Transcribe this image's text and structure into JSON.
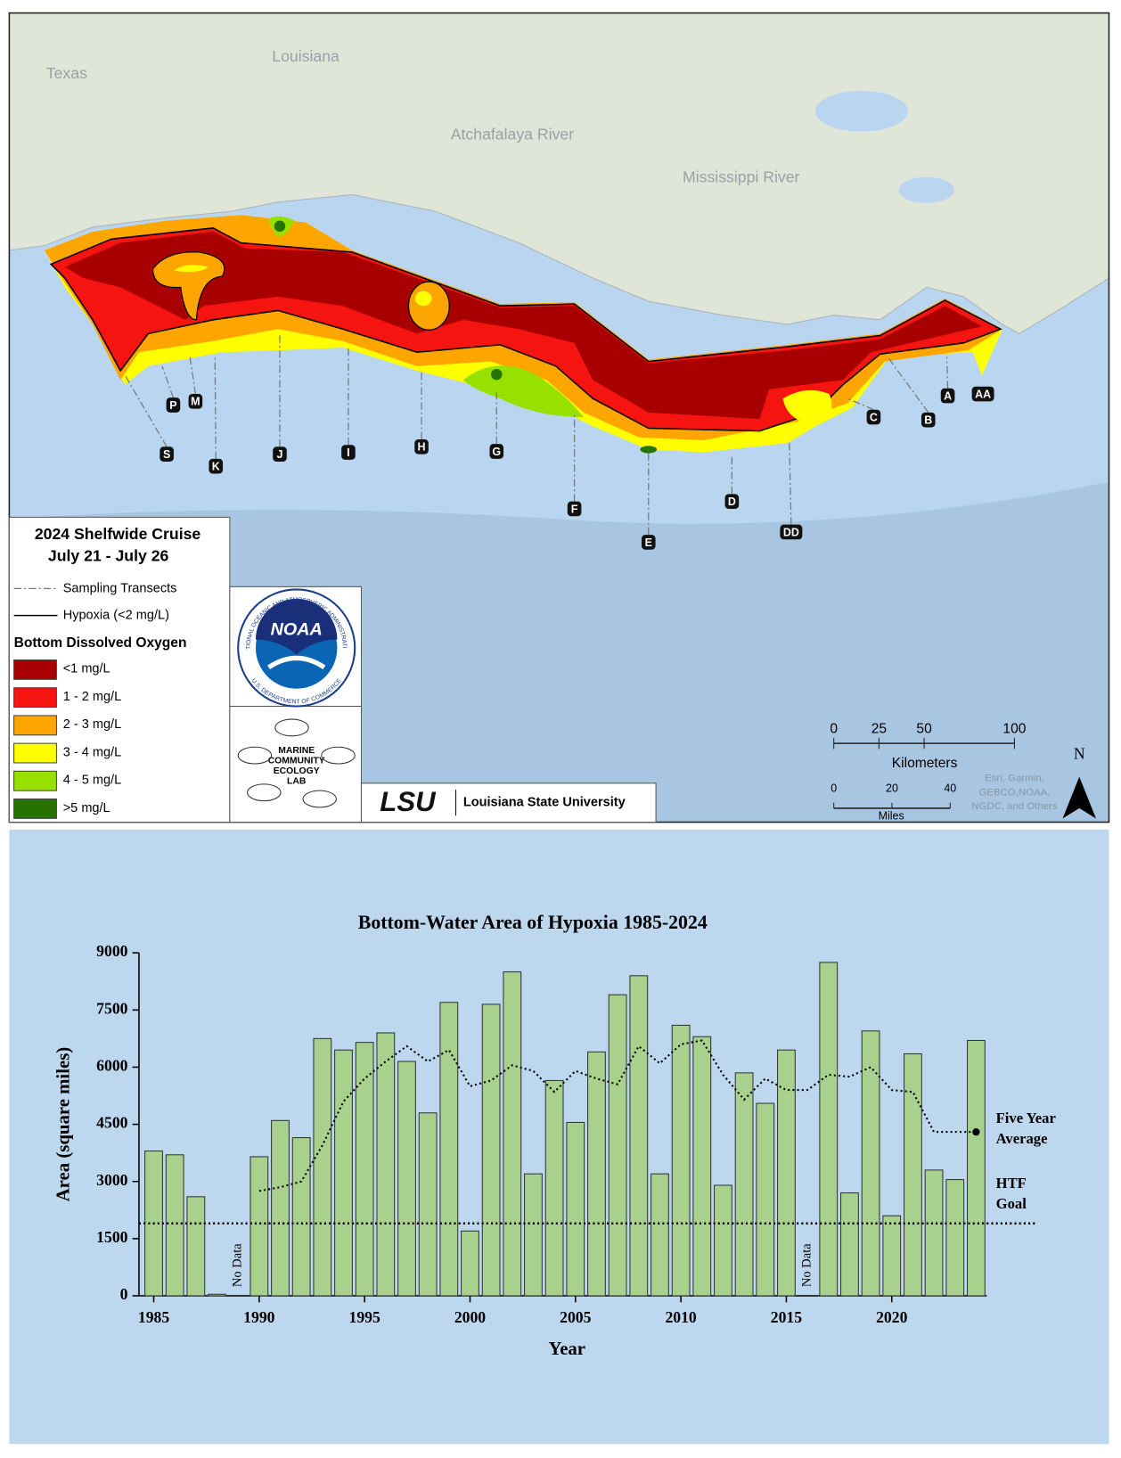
{
  "map": {
    "places": [
      "Texas",
      "Louisiana",
      "Atchafalaya River",
      "Mississippi River"
    ],
    "transects": [
      "S",
      "P",
      "M",
      "K",
      "J",
      "I",
      "H",
      "G",
      "F",
      "E",
      "D",
      "DD",
      "C",
      "B",
      "A",
      "AA"
    ],
    "legend": {
      "title": "2024 Shelfwide Cruise",
      "dates": "July 21 - July 26",
      "lines": [
        "Sampling Transects",
        "Hypoxia (<2 mg/L)"
      ],
      "oxygen_title": "Bottom Dissolved Oxygen",
      "oxygen_classes": [
        {
          "label": "<1 mg/L",
          "color": "#a80000"
        },
        {
          "label": "1 - 2 mg/L",
          "color": "#f5140f"
        },
        {
          "label": "2 - 3 mg/L",
          "color": "#ffa500"
        },
        {
          "label": "3 - 4 mg/L",
          "color": "#ffff00"
        },
        {
          "label": "4 - 5 mg/L",
          "color": "#98e000"
        },
        {
          "label": ">5 mg/L",
          "color": "#267300"
        }
      ]
    },
    "scale": {
      "km_label": "Kilometers",
      "km_ticks": [
        0,
        25,
        50,
        100
      ],
      "mi_label": "Miles",
      "mi_ticks": [
        0,
        20,
        40
      ]
    },
    "north": "N",
    "credits": [
      "Esri, Garmin,",
      "GEBCO,NOAA,",
      "NGDC, and Others"
    ],
    "logos": {
      "noaa": "NOAA",
      "noaa_ring_top": "NATIONAL OCEANIC AND ATMOSPHERIC ADMINISTRATION",
      "noaa_ring_bottom": "U.S. DEPARTMENT OF COMMERCE",
      "lab": [
        "MARINE",
        "COMMUNITY",
        "ECOLOGY",
        "LAB"
      ],
      "lsu": "LSU",
      "university": "Louisiana State University"
    }
  },
  "chart_data": {
    "type": "bar",
    "title": "Bottom-Water Area of Hypoxia 1985-2024",
    "x_label": "Year",
    "y_label": "Area (square miles)",
    "x": [
      1985,
      1986,
      1987,
      1988,
      1989,
      1990,
      1991,
      1992,
      1993,
      1994,
      1995,
      1996,
      1997,
      1998,
      1999,
      2000,
      2001,
      2002,
      2003,
      2004,
      2005,
      2006,
      2007,
      2008,
      2009,
      2010,
      2011,
      2012,
      2013,
      2014,
      2015,
      2016,
      2017,
      2018,
      2019,
      2020,
      2021,
      2022,
      2023,
      2024
    ],
    "series": [
      {
        "values": [
          3800,
          3700,
          2600,
          40,
          null,
          3650,
          4600,
          4150,
          6750,
          6450,
          6650,
          6900,
          6150,
          4800,
          7700,
          1700,
          7650,
          8500,
          3200,
          5650,
          4550,
          6400,
          7900,
          8400,
          3200,
          7100,
          6800,
          2900,
          5850,
          5050,
          6450,
          null,
          8750,
          2700,
          6950,
          2100,
          6350,
          3300,
          3050,
          6700
        ],
        "color": "#a9d18e"
      },
      {
        "values": [
          null,
          null,
          null,
          null,
          null,
          2750,
          2850,
          3000,
          3950,
          5100,
          5700,
          6150,
          6550,
          6150,
          6450,
          5500,
          5650,
          6050,
          5900,
          5350,
          5900,
          5700,
          5550,
          6550,
          6100,
          6600,
          6700,
          5800,
          5150,
          5700,
          5400,
          5400,
          5800,
          5750,
          6000,
          5400,
          5350,
          4300,
          4300,
          4300
        ],
        "color": "#000000",
        "style": "dotted",
        "label": [
          "Five Year",
          "Average"
        ]
      }
    ],
    "goal": {
      "value": 1900,
      "label": [
        "HTF",
        "Goal"
      ]
    },
    "annotations": [
      {
        "text": "No Data",
        "x": 1989
      },
      {
        "text": "No Data",
        "x": 2016
      }
    ],
    "xlim": [
      1984.3,
      2024.5
    ],
    "xticks": [
      1985,
      1990,
      1995,
      2000,
      2005,
      2010,
      2015,
      2020
    ],
    "ylim": [
      0,
      9000
    ],
    "yticks": [
      0,
      1500,
      3000,
      4500,
      6000,
      7500,
      9000
    ],
    "grid": false
  }
}
